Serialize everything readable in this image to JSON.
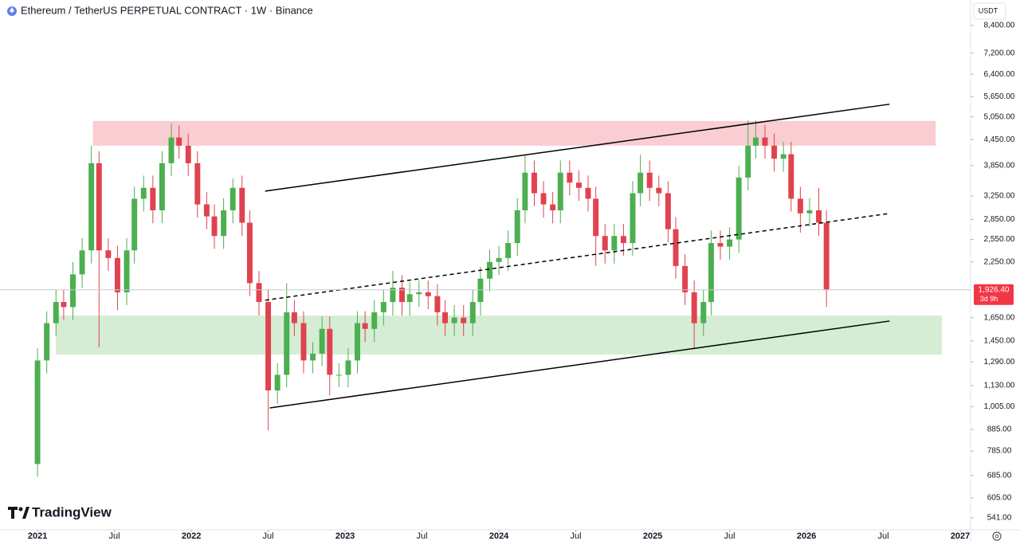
{
  "chart_data": {
    "type": "candlestick",
    "title": "Ethereum / TetherUS PERPETUAL CONTRACT · 1W · Binance",
    "currency": "USDT",
    "brand": "TradingView",
    "yscale": "log",
    "up_color": "#4caf50",
    "down_color": "#e0424f",
    "xlim": [
      2020.756,
      2027.067
    ],
    "ylim": [
      506,
      9680
    ],
    "xticks": [
      {
        "value": 2021,
        "label": "2021"
      },
      {
        "value": 2021.5,
        "label": "Jul"
      },
      {
        "value": 2022,
        "label": "2022"
      },
      {
        "value": 2022.5,
        "label": "Jul"
      },
      {
        "value": 2023,
        "label": "2023"
      },
      {
        "value": 2023.5,
        "label": "Jul"
      },
      {
        "value": 2024,
        "label": "2024"
      },
      {
        "value": 2024.5,
        "label": "Jul"
      },
      {
        "value": 2025,
        "label": "2025"
      },
      {
        "value": 2025.5,
        "label": "Jul"
      },
      {
        "value": 2026,
        "label": "2026"
      },
      {
        "value": 2026.5,
        "label": "Jul"
      },
      {
        "value": 2027,
        "label": "2027"
      }
    ],
    "yticks": [
      {
        "value": 8400,
        "label": "8,400.00"
      },
      {
        "value": 7200,
        "label": "7,200.00"
      },
      {
        "value": 6400,
        "label": "6,400.00"
      },
      {
        "value": 5650,
        "label": "5,650.00"
      },
      {
        "value": 5050,
        "label": "5,050.00"
      },
      {
        "value": 4450,
        "label": "4,450.00"
      },
      {
        "value": 3850,
        "label": "3,850.00"
      },
      {
        "value": 3250,
        "label": "3,250.00"
      },
      {
        "value": 2850,
        "label": "2,850.00"
      },
      {
        "value": 2550,
        "label": "2,550.00"
      },
      {
        "value": 2250,
        "label": "2,250.00"
      },
      {
        "value": 1650,
        "label": "1,650.00"
      },
      {
        "value": 1450,
        "label": "1,450.00"
      },
      {
        "value": 1290,
        "label": "1,290.00"
      },
      {
        "value": 1130,
        "label": "1,130.00"
      },
      {
        "value": 1005,
        "label": "1,005.00"
      },
      {
        "value": 885,
        "label": "885.00"
      },
      {
        "value": 785,
        "label": "785.00"
      },
      {
        "value": 685,
        "label": "685.00"
      },
      {
        "value": 605,
        "label": "605.00"
      },
      {
        "value": 541,
        "label": "541.00"
      }
    ],
    "current_price": {
      "value": 1926.4,
      "label": "1,926.40",
      "countdown": "3d 9h",
      "color": "#f23645"
    },
    "zones": [
      {
        "x": [
          2021.36,
          2026.84
        ],
        "y": [
          4300,
          4934
        ],
        "color": "#f9cdd1"
      },
      {
        "x": [
          2021.12,
          2026.88
        ],
        "y": [
          1344,
          1669
        ],
        "color": "#d5ecd5"
      }
    ],
    "lines": [
      {
        "x": [
          2022.48,
          2026.54
        ],
        "y": [
          3339,
          5417
        ],
        "style": "solid"
      },
      {
        "x": [
          2022.51,
          2026.54
        ],
        "y": [
          998,
          1619
        ],
        "style": "solid"
      },
      {
        "x": [
          2022.48,
          2026.54
        ],
        "y": [
          1818,
          2948
        ],
        "style": "dashed"
      }
    ],
    "series": [
      {
        "name": "ETHUSDT.P",
        "x": [
          2021.0,
          2021.06,
          2021.12,
          2021.17,
          2021.23,
          2021.29,
          2021.35,
          2021.4,
          2021.46,
          2021.52,
          2021.58,
          2021.63,
          2021.69,
          2021.75,
          2021.81,
          2021.87,
          2021.92,
          2021.98,
          2022.04,
          2022.1,
          2022.15,
          2022.21,
          2022.27,
          2022.33,
          2022.38,
          2022.44,
          2022.5,
          2022.56,
          2022.62,
          2022.67,
          2022.73,
          2022.79,
          2022.85,
          2022.9,
          2022.96,
          2023.02,
          2023.08,
          2023.13,
          2023.19,
          2023.25,
          2023.31,
          2023.37,
          2023.42,
          2023.48,
          2023.54,
          2023.6,
          2023.65,
          2023.71,
          2023.77,
          2023.83,
          2023.88,
          2023.94,
          2024.0,
          2024.06,
          2024.12,
          2024.17,
          2024.23,
          2024.29,
          2024.35,
          2024.4,
          2024.46,
          2024.52,
          2024.58,
          2024.63,
          2024.69,
          2024.75,
          2024.81,
          2024.87,
          2024.92,
          2024.98,
          2025.04,
          2025.1,
          2025.15,
          2025.21,
          2025.27,
          2025.33,
          2025.38,
          2025.44,
          2025.5,
          2025.56,
          2025.62,
          2025.67,
          2025.73,
          2025.79,
          2025.85,
          2025.9,
          2025.96,
          2026.02,
          2026.08,
          2026.13
        ],
        "open": [
          730,
          1300,
          1600,
          1800,
          1750,
          2100,
          2400,
          3900,
          2400,
          2300,
          1900,
          2400,
          3200,
          3400,
          3000,
          3900,
          4500,
          4300,
          3900,
          3100,
          2900,
          2600,
          3000,
          3400,
          2800,
          2000,
          1800,
          1100,
          1200,
          1700,
          1600,
          1300,
          1350,
          1550,
          1200,
          1200,
          1300,
          1600,
          1550,
          1700,
          1800,
          1950,
          1800,
          1880,
          1900,
          1860,
          1700,
          1600,
          1650,
          1600,
          1800,
          2050,
          2250,
          2300,
          2500,
          3000,
          3700,
          3300,
          3100,
          3000,
          3700,
          3500,
          3400,
          3200,
          2600,
          2400,
          2600,
          2500,
          3300,
          3700,
          3400,
          3300,
          2700,
          2200,
          1900,
          1600,
          1800,
          2500,
          2450,
          2550,
          3600,
          4300,
          4500,
          4300,
          4000,
          4100,
          3200,
          2950,
          3000,
          2800
        ],
        "high": [
          1390,
          1710,
          1930,
          1930,
          2250,
          2570,
          4300,
          4170,
          2570,
          2460,
          2570,
          3420,
          3640,
          3640,
          4170,
          4870,
          4820,
          4600,
          4170,
          3320,
          3100,
          3210,
          3580,
          3640,
          3000,
          2140,
          1930,
          1280,
          2000,
          1820,
          1710,
          1440,
          1660,
          1660,
          1280,
          1390,
          1710,
          1710,
          1820,
          1930,
          2140,
          2090,
          2010,
          2030,
          2030,
          1990,
          1820,
          1770,
          1770,
          1930,
          2190,
          2410,
          2460,
          2680,
          3210,
          4090,
          3960,
          3530,
          3320,
          3960,
          3960,
          3750,
          3640,
          3420,
          2780,
          2780,
          2780,
          3530,
          4090,
          3960,
          3640,
          3530,
          2890,
          2350,
          2030,
          1930,
          2680,
          2680,
          2730,
          3850,
          4950,
          4950,
          4820,
          4600,
          4390,
          4390,
          3420,
          3210,
          3400,
          3000
        ],
        "low": [
          680,
          1210,
          1490,
          1630,
          1630,
          1950,
          2230,
          1400,
          2140,
          1720,
          1770,
          2230,
          2980,
          2790,
          2790,
          3630,
          4000,
          3630,
          2880,
          2700,
          2420,
          2420,
          2790,
          2600,
          1860,
          1670,
          880,
          1020,
          1120,
          1490,
          1210,
          1210,
          1260,
          1070,
          1120,
          1120,
          1210,
          1440,
          1440,
          1580,
          1670,
          1670,
          1670,
          1750,
          1730,
          1580,
          1490,
          1490,
          1490,
          1490,
          1670,
          1910,
          2090,
          2140,
          2330,
          2790,
          3070,
          2880,
          2790,
          2790,
          3260,
          3160,
          2980,
          2200,
          2230,
          2230,
          2330,
          2330,
          3070,
          3160,
          3070,
          2510,
          2050,
          1770,
          1385,
          1490,
          1670,
          2280,
          2280,
          2370,
          3350,
          4000,
          4000,
          3720,
          3720,
          2980,
          2650,
          2740,
          2600,
          1750
        ],
        "close": [
          1300,
          1600,
          1800,
          1750,
          2100,
          2400,
          3900,
          2400,
          2300,
          1900,
          2400,
          3200,
          3400,
          3000,
          3900,
          4500,
          4300,
          3900,
          3100,
          2900,
          2600,
          3000,
          3400,
          2800,
          2000,
          1800,
          1100,
          1200,
          1700,
          1600,
          1300,
          1350,
          1550,
          1200,
          1200,
          1300,
          1600,
          1550,
          1700,
          1800,
          1950,
          1800,
          1880,
          1900,
          1860,
          1700,
          1600,
          1650,
          1600,
          1800,
          2050,
          2250,
          2300,
          2500,
          3000,
          3700,
          3300,
          3100,
          3000,
          3700,
          3500,
          3400,
          3200,
          2600,
          2400,
          2600,
          2500,
          3300,
          3700,
          3400,
          3300,
          2700,
          2200,
          1900,
          1600,
          1800,
          2500,
          2450,
          2550,
          3600,
          4300,
          4500,
          4300,
          4000,
          4100,
          3200,
          2950,
          3000,
          2800,
          1926.4
        ]
      }
    ]
  }
}
